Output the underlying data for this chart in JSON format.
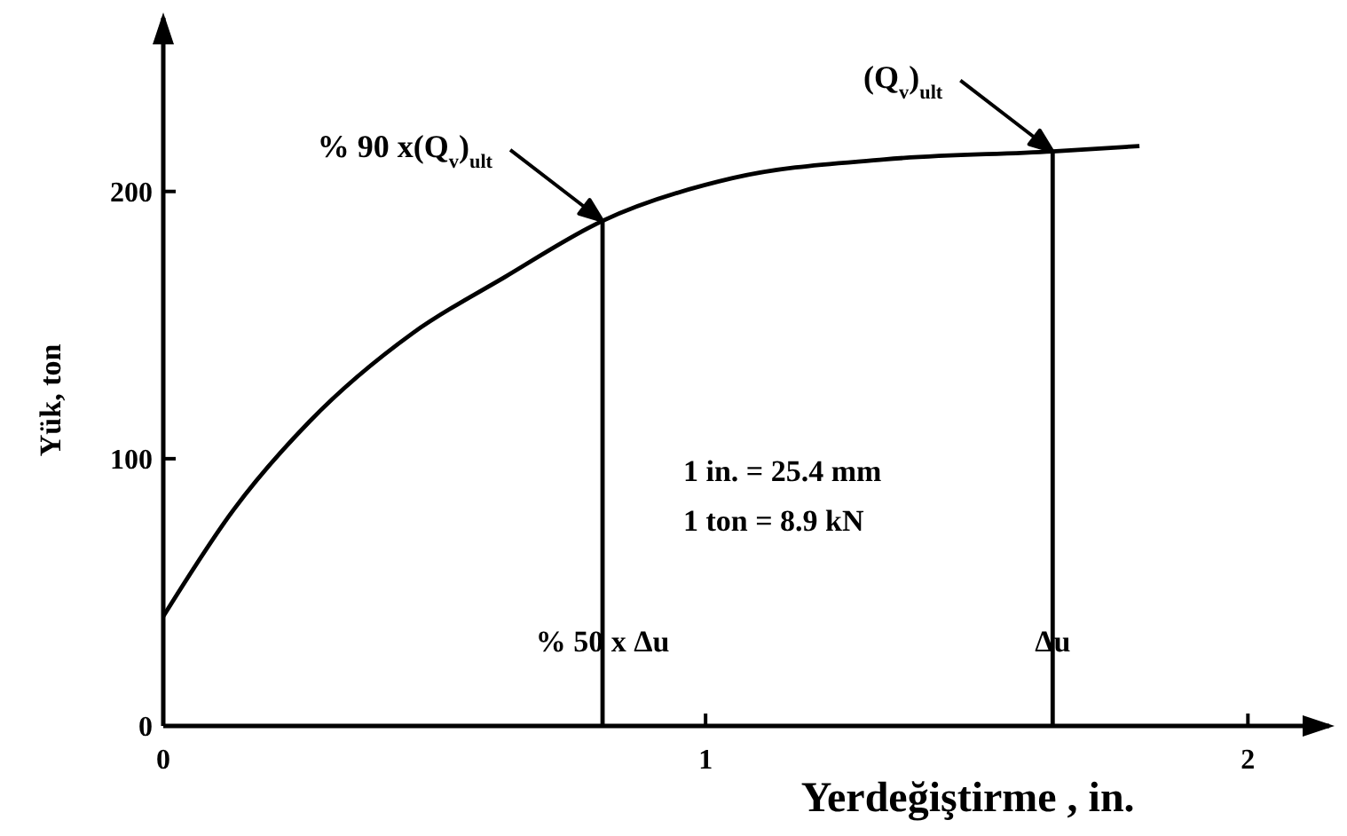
{
  "chart_data": {
    "type": "line",
    "xlabel": "Yerdeğiştirme , in.",
    "ylabel": "Yük, ton",
    "series": [
      {
        "color": "#000000",
        "x": [
          0,
          0.13,
          0.27,
          0.46,
          0.63,
          0.81,
          1.05,
          1.33,
          1.64,
          1.8
        ],
        "values": [
          41,
          81,
          114,
          147,
          168,
          189,
          205,
          212,
          215,
          217
        ]
      },
      {
        "color": "#000000",
        "x": [
          0.81,
          0.81
        ],
        "values": [
          0,
          189
        ]
      },
      {
        "color": "#000000",
        "x": [
          1.64,
          1.64
        ],
        "values": [
          0,
          215
        ]
      }
    ],
    "xlim": [
      0,
      2.15
    ],
    "xticks": [
      0,
      1,
      2
    ],
    "ylim": [
      0,
      265
    ],
    "yticks": [
      0,
      100,
      200
    ],
    "marker": "none",
    "line_style": "solid",
    "annotations": [
      "% 90 x(Q$_{v}$)$_{ult}$",
      "(Q$_{v}$)$_{ult}$",
      {
        "text": "% 50 x Δu",
        "x": 0.81
      },
      {
        "text": "Δu",
        "x": 1.64
      },
      "1 in. = 25.4 mm",
      "1 ton = 8.9 kN"
    ]
  }
}
